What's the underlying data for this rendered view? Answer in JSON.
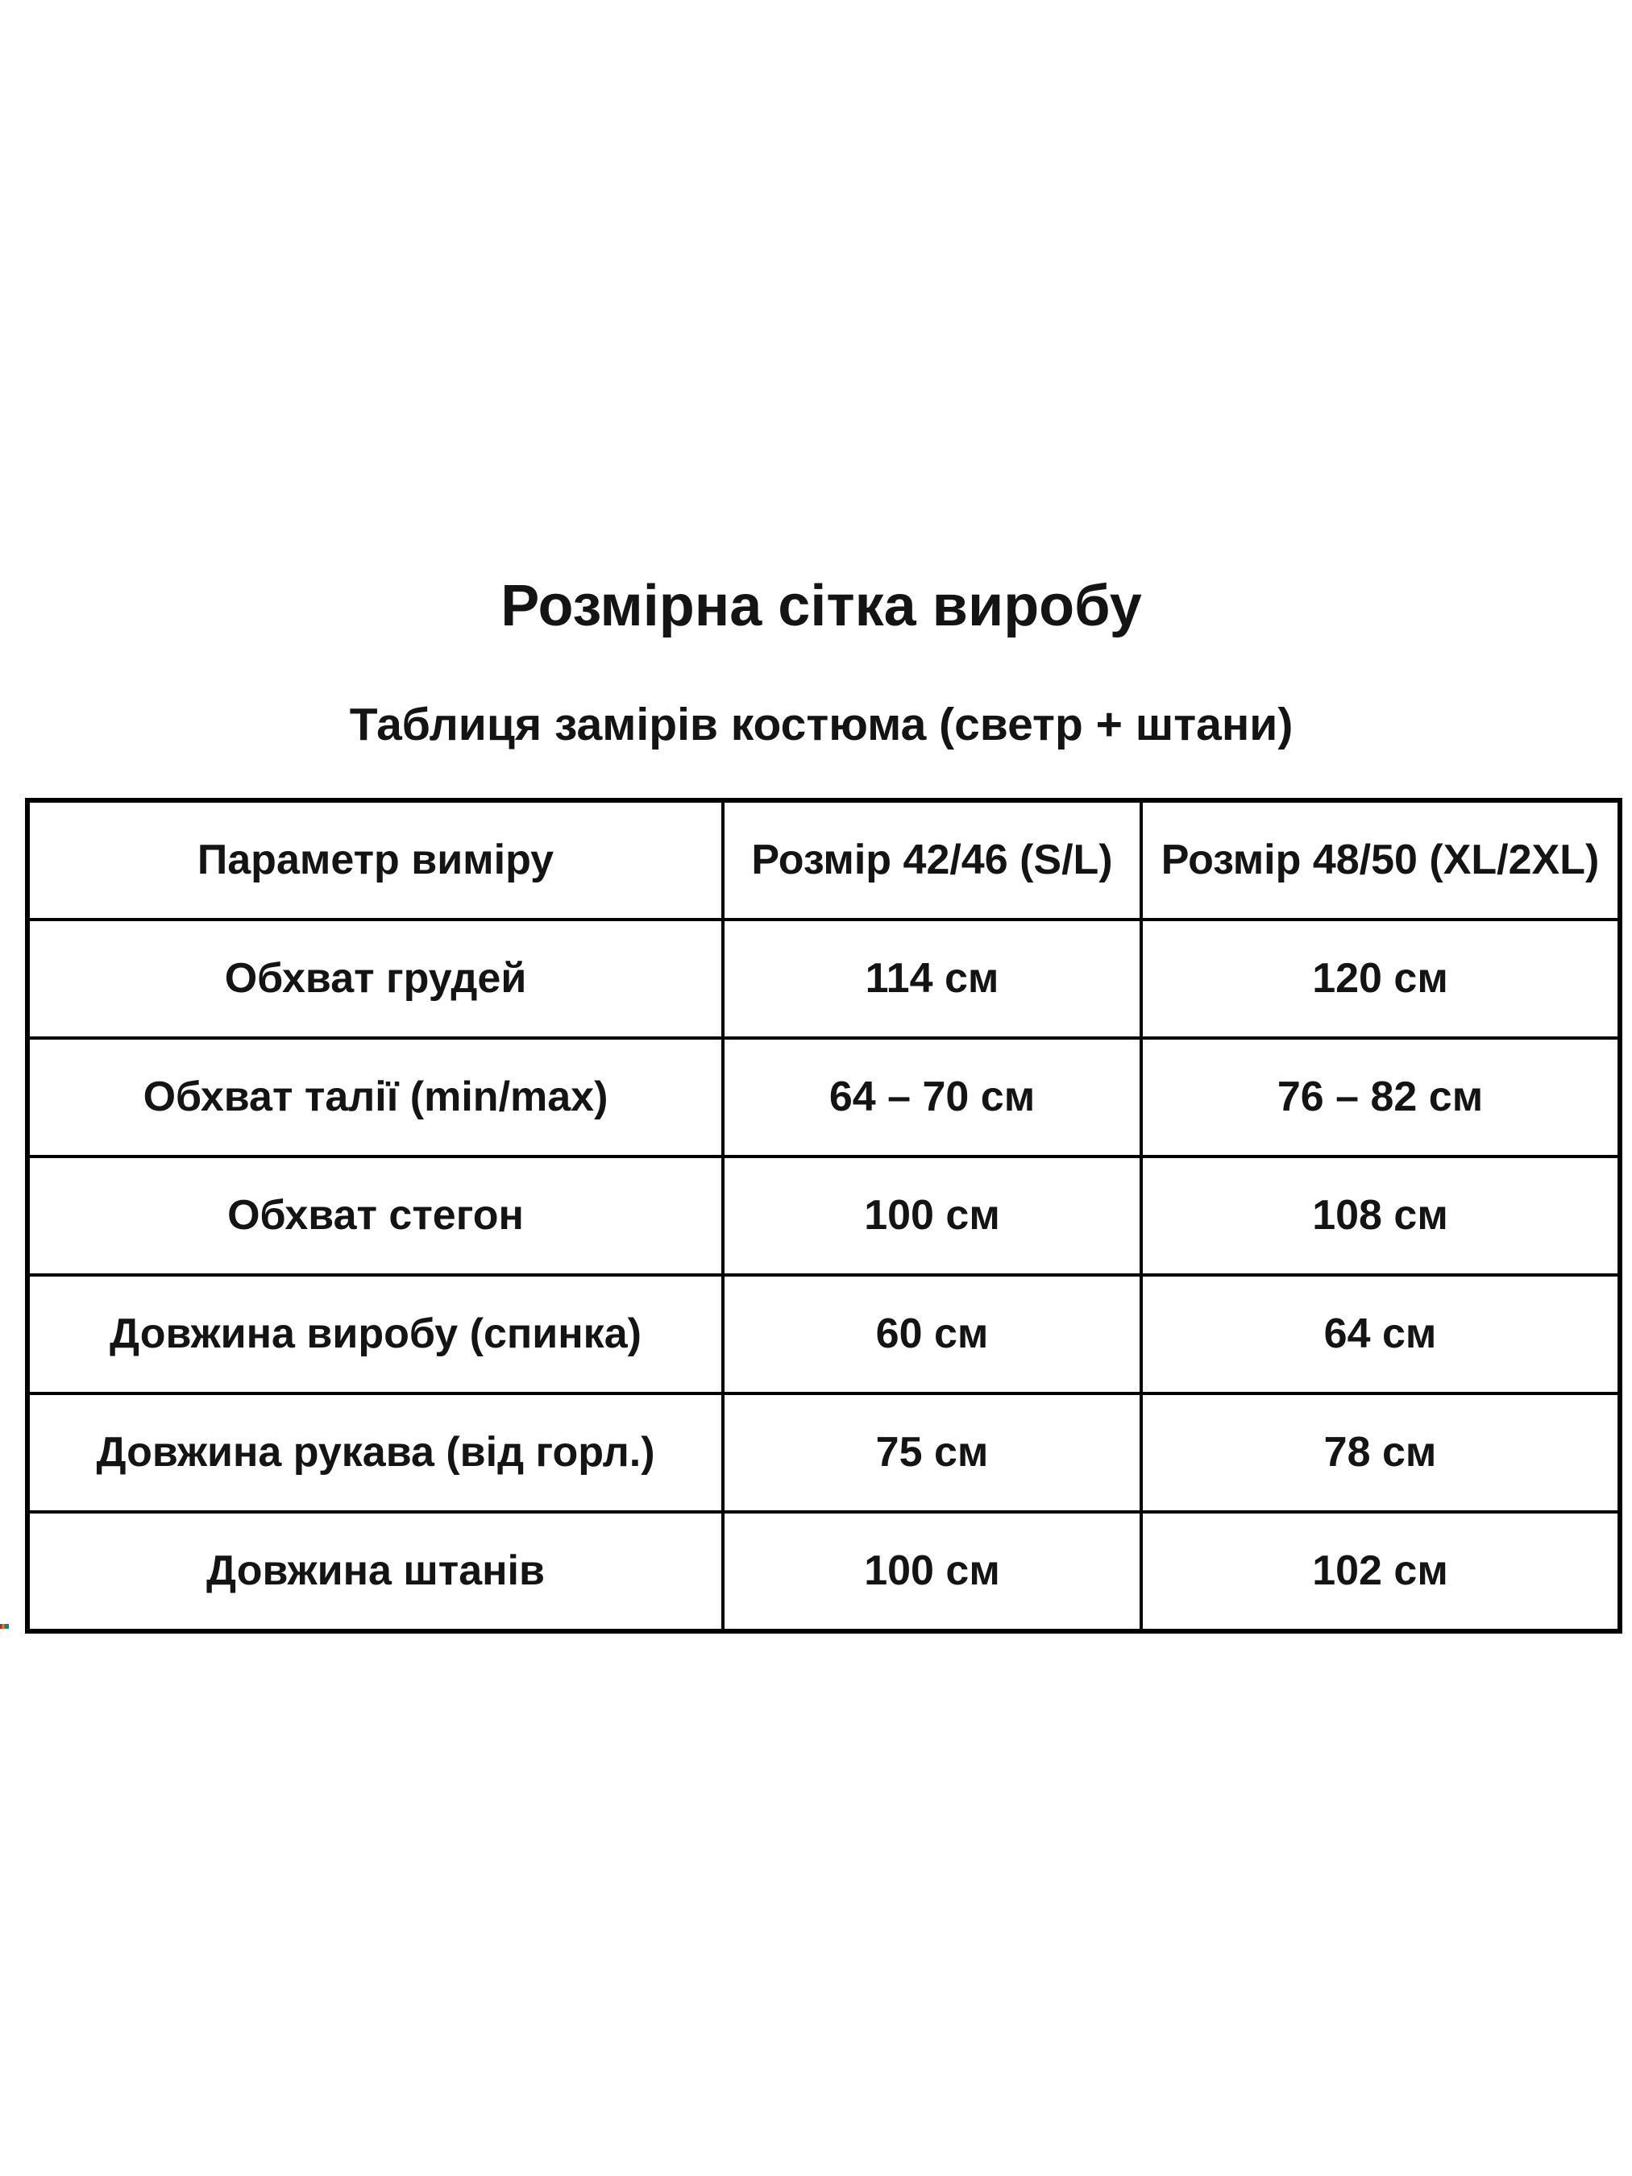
{
  "page": {
    "title": "Розмірна сітка виробу",
    "subtitle": "Таблиця замірів костюма (светр + штани)"
  },
  "table": {
    "columns": [
      "Параметр виміру",
      "Розмір 42/46 (S/L)",
      "Розмір 48/50 (XL/2XL)"
    ],
    "rows": [
      [
        "Обхват грудей",
        "114 см",
        "120 см"
      ],
      [
        "Обхват талії (min/max)",
        "64 – 70 см",
        "76 – 82 см"
      ],
      [
        "Обхват стегон",
        "100 см",
        "108 см"
      ],
      [
        "Довжина виробу (спинка)",
        "60 см",
        "64 см"
      ],
      [
        "Довжина рукава (від горл.)",
        "75 см",
        "78 см"
      ],
      [
        "Довжина штанів",
        "100 см",
        "102 см"
      ]
    ]
  },
  "colors": {
    "background": "#ffffff",
    "text": "#141414",
    "table_border": "#000000"
  },
  "artifact": {
    "dash_colors": [
      "#a93226",
      "#d68910",
      "#1e8449",
      "#2471a3"
    ]
  }
}
